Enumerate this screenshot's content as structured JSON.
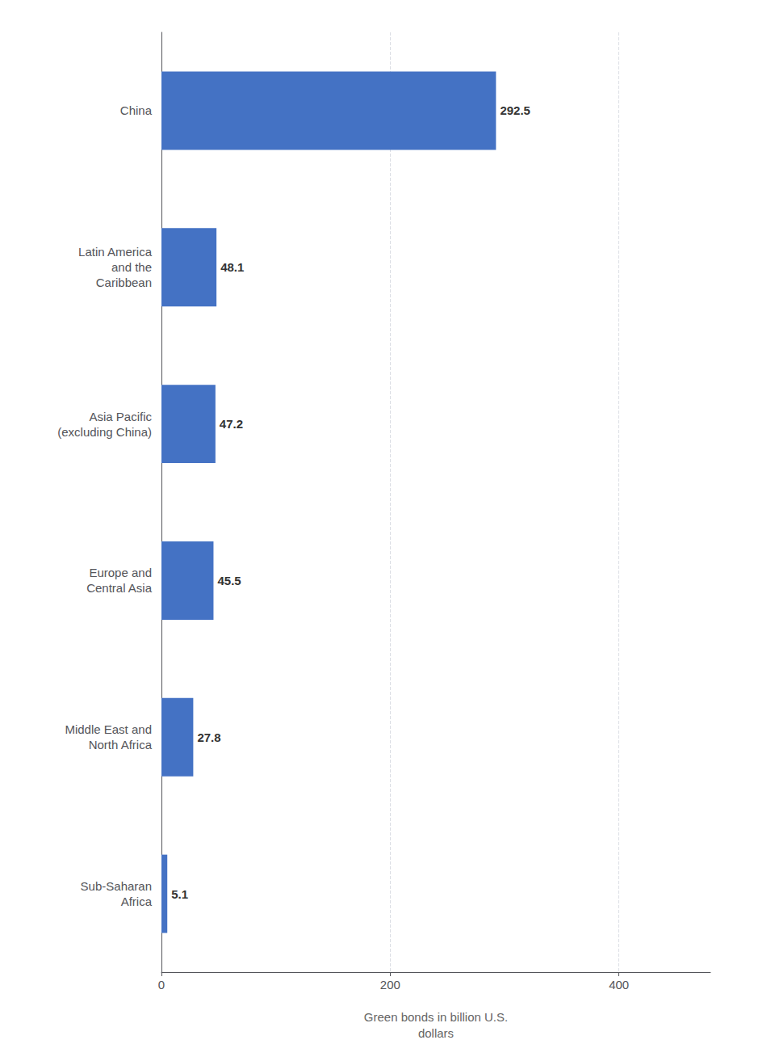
{
  "chart_data": {
    "type": "bar",
    "orientation": "horizontal",
    "categories": [
      "Sub-Saharan\nAfrica",
      "Middle East and\nNorth Africa",
      "Europe and\nCentral Asia",
      "Asia Pacific\n(excluding China)",
      "Latin America\nand the\nCaribbean",
      "China"
    ],
    "values": [
      5.1,
      27.8,
      45.5,
      47.2,
      48.1,
      292.5
    ],
    "color": "#4472c4",
    "xlabel": "Green bonds in billion U.S.\ndollars",
    "xlim": [
      0,
      480
    ],
    "xticks": [
      0,
      200,
      400
    ],
    "grid": true,
    "data_labels": true
  }
}
